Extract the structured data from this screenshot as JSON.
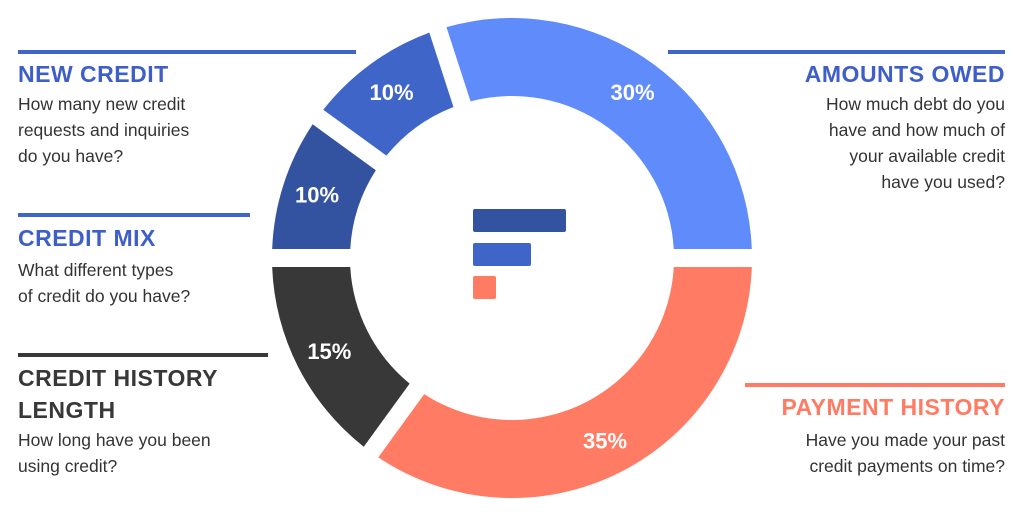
{
  "chart_data": {
    "type": "pie",
    "variant": "donut",
    "title": "",
    "slices": [
      {
        "key": "amounts_owed",
        "label": "AMOUNTS OWED",
        "value": 30,
        "value_label": "30%",
        "color": "#5F8BFB",
        "description": [
          "How much debt do you",
          "have and how much of",
          "your available credit",
          "have you used?"
        ]
      },
      {
        "key": "payment_history",
        "label": "PAYMENT HISTORY",
        "value": 35,
        "value_label": "35%",
        "color": "#FF7B63",
        "description": [
          "Have you made your past",
          "credit payments on time?"
        ]
      },
      {
        "key": "credit_history_length",
        "label": "CREDIT HISTORY LENGTH",
        "label_lines": [
          "CREDIT HISTORY",
          "LENGTH"
        ],
        "value": 15,
        "value_label": "15%",
        "color": "#383838",
        "description": [
          "How long have you been",
          "using credit?"
        ]
      },
      {
        "key": "credit_mix",
        "label": "CREDIT MIX",
        "value": 10,
        "value_label": "10%",
        "color": "#3353A0",
        "description": [
          "What different types",
          "of credit do you have?"
        ]
      },
      {
        "key": "new_credit",
        "label": "NEW CREDIT",
        "value": 10,
        "value_label": "10%",
        "color": "#3F65C8",
        "description": [
          "How many new credit",
          "requests and inquiries",
          "do you have?"
        ]
      }
    ],
    "legend": "annotations around chart"
  },
  "colors": {
    "title_blue": "#3F5FC8",
    "title_dark": "#383838",
    "title_coral": "#FF7B63",
    "logo": [
      "#3353A0",
      "#3F65C8",
      "#FF7B63"
    ]
  }
}
